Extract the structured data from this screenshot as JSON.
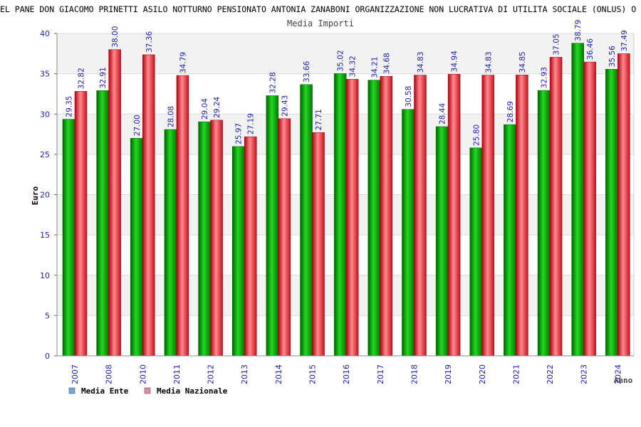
{
  "chart_data": {
    "type": "bar",
    "title": "EL PANE DON GIACOMO PRINETTI ASILO NOTTURNO PENSIONATO ANTONIA ZANABONI ORGANIZZAZIONE NON LUCRATIVA DI UTILITA SOCIALE (ONLUS) O",
    "subtitle": "Media Importi",
    "xlabel": "Anno",
    "ylabel": "Euro",
    "ylim": [
      0,
      40
    ],
    "yticks": [
      "0",
      "5",
      "10",
      "15",
      "20",
      "25",
      "30",
      "35",
      "40"
    ],
    "grid": true,
    "legend_position": "bottom-left",
    "categories": [
      "2007",
      "2008",
      "2010",
      "2011",
      "2012",
      "2013",
      "2014",
      "2015",
      "2016",
      "2017",
      "2018",
      "2019",
      "2020",
      "2021",
      "2022",
      "2023",
      "2024"
    ],
    "series": [
      {
        "name": "Media Ente",
        "color": "#00a800",
        "legend_color": "#6fa8dc",
        "values": [
          29.35,
          32.91,
          27.0,
          28.08,
          29.04,
          25.97,
          32.28,
          33.66,
          35.02,
          34.21,
          30.58,
          28.44,
          25.8,
          28.69,
          32.93,
          38.79,
          35.56
        ],
        "labels": [
          "29.35",
          "32.91",
          "27.00",
          "28.08",
          "29.04",
          "25.97",
          "32.28",
          "33.66",
          "35.02",
          "34.21",
          "30.58",
          "28.44",
          "25.80",
          "28.69",
          "32.93",
          "38.79",
          "35.56"
        ]
      },
      {
        "name": "Media Nazionale",
        "color": "#e8202a",
        "legend_color": "#e08ab0",
        "values": [
          32.82,
          38.0,
          37.36,
          34.79,
          29.24,
          27.19,
          29.43,
          27.71,
          34.32,
          34.68,
          34.83,
          34.94,
          34.83,
          34.85,
          37.05,
          36.46,
          37.49
        ],
        "labels": [
          "32.82",
          "38.00",
          "37.36",
          "34.79",
          "29.24",
          "27.19",
          "29.43",
          "27.71",
          "34.32",
          "34.68",
          "34.83",
          "34.94",
          "34.83",
          "34.85",
          "37.05",
          "36.46",
          "37.49"
        ]
      }
    ]
  }
}
